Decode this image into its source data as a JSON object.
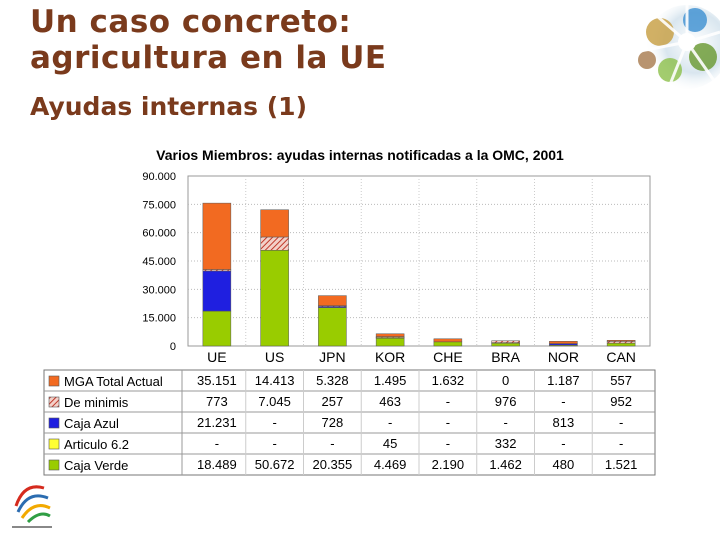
{
  "slide": {
    "title_line1": "Un caso concreto:",
    "title_line2": "agricultura en la UE",
    "subtitle": "Ayudas internas (1)"
  },
  "colors": {
    "title": "#7a3a1c",
    "mga": "#f26a21",
    "deminimis": "#c0392b",
    "azul": "#1f1fe0",
    "articulo": "#ffff33",
    "verde": "#99cc00"
  },
  "icons": [
    "wto-logo-icon",
    "agriculture-photo-collage-icon"
  ],
  "chart_data": {
    "type": "bar",
    "stacked": true,
    "title": "Varios Miembros: ayudas internas notificadas a la OMC, 2001",
    "categories": [
      "UE",
      "US",
      "JPN",
      "KOR",
      "CHE",
      "BRA",
      "NOR",
      "CAN"
    ],
    "yticks": [
      "90.000",
      "75.000",
      "60.000",
      "45.000",
      "30.000",
      "15.000",
      "0"
    ],
    "ylim": [
      0,
      90000
    ],
    "grid": true,
    "series": [
      {
        "name": "MGA Total Actual",
        "color": "#f26a21",
        "labels": [
          "35.151",
          "14.413",
          "5.328",
          "1.495",
          "1.632",
          "0",
          "1.187",
          "557"
        ],
        "values": [
          35151,
          14413,
          5328,
          1495,
          1632,
          0,
          1187,
          557
        ]
      },
      {
        "name": "De minimis",
        "color": "#c0392b",
        "labels": [
          "773",
          "7.045",
          "257",
          "463",
          "-",
          "976",
          "-",
          "952"
        ],
        "values": [
          773,
          7045,
          257,
          463,
          0,
          976,
          0,
          952
        ]
      },
      {
        "name": "Caja Azul",
        "color": "#1f1fe0",
        "labels": [
          "21.231",
          "-",
          "728",
          "-",
          "-",
          "-",
          "813",
          "-"
        ],
        "values": [
          21231,
          0,
          728,
          0,
          0,
          0,
          813,
          0
        ]
      },
      {
        "name": "Articulo 6.2",
        "color": "#ffff33",
        "labels": [
          "-",
          "-",
          "-",
          "45",
          "-",
          "332",
          "-",
          "-"
        ],
        "values": [
          0,
          0,
          0,
          45,
          0,
          332,
          0,
          0
        ]
      },
      {
        "name": "Caja Verde",
        "color": "#99cc00",
        "labels": [
          "18.489",
          "50.672",
          "20.355",
          "4.469",
          "2.190",
          "1.462",
          "480",
          "1.521"
        ],
        "values": [
          18489,
          50672,
          20355,
          4469,
          2190,
          1462,
          480,
          1521
        ]
      }
    ]
  }
}
